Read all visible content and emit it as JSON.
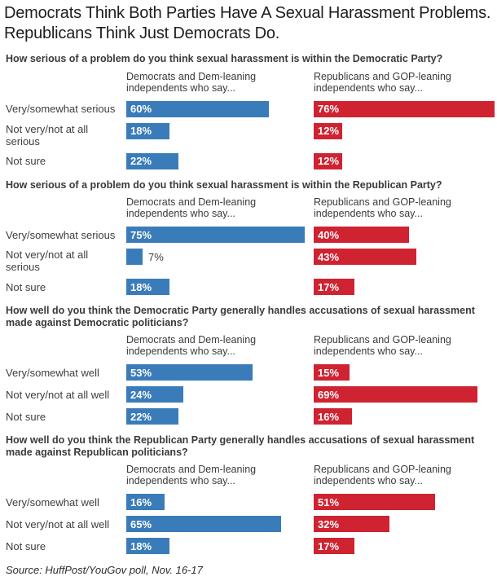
{
  "page": {
    "title": "Democrats Think Both Parties Have A Sexual Harassment Problems. Republicans Think Just Democrats Do.",
    "source": "Source: HuffPost/YouGov poll, Nov. 16-17"
  },
  "colors": {
    "dem": "#3a7cb9",
    "gop": "#cf2331",
    "bar_label_inside": "#ffffff",
    "bar_label_outside": "#3b3b3b"
  },
  "chart_data": [
    {
      "type": "bar",
      "orientation": "horizontal",
      "title": "How serious of a problem do you think sexual harassment is within the Democratic Party?",
      "categories": [
        "Very/somewhat serious",
        "Not very/not at all serious",
        "Not sure"
      ],
      "series": [
        {
          "name": "Democrats and Dem-leaning independents who say...",
          "party": "dem",
          "values": [
            60,
            18,
            22
          ]
        },
        {
          "name": "Republicans and GOP-leaning independents who say...",
          "party": "gop",
          "values": [
            76,
            12,
            12
          ]
        }
      ],
      "xlim": [
        0,
        77
      ],
      "value_suffix": "%",
      "value_labels": "inside",
      "grid": false,
      "legend_position": "column-headers"
    },
    {
      "type": "bar",
      "orientation": "horizontal",
      "title": "How serious of a problem do you think sexual harassment is within the Republican Party?",
      "categories": [
        "Very/somewhat serious",
        "Not very/not at all serious",
        "Not sure"
      ],
      "series": [
        {
          "name": "Democrats and Dem-leaning independents who say...",
          "party": "dem",
          "values": [
            75,
            7,
            18
          ]
        },
        {
          "name": "Republicans and GOP-leaning independents who say...",
          "party": "gop",
          "values": [
            40,
            43,
            17
          ]
        }
      ],
      "xlim": [
        0,
        77
      ],
      "value_suffix": "%",
      "value_labels": "inside",
      "grid": false,
      "legend_position": "column-headers"
    },
    {
      "type": "bar",
      "orientation": "horizontal",
      "title": "How well do you think the Democratic Party generally handles accusations of sexual harassment made against Democratic politicians?",
      "categories": [
        "Very/somewhat well",
        "Not very/not at all well",
        "Not sure"
      ],
      "series": [
        {
          "name": "Democrats and Dem-leaning independents who say...",
          "party": "dem",
          "values": [
            53,
            24,
            22
          ]
        },
        {
          "name": "Republicans and GOP-leaning independents who say...",
          "party": "gop",
          "values": [
            15,
            69,
            16
          ]
        }
      ],
      "xlim": [
        0,
        77
      ],
      "value_suffix": "%",
      "value_labels": "inside",
      "grid": false,
      "legend_position": "column-headers"
    },
    {
      "type": "bar",
      "orientation": "horizontal",
      "title": "How well do you think the Republican Party generally handles accusations of sexual harassment made against Republican politicians?",
      "categories": [
        "Very/somewhat well",
        "Not very/not at all well",
        "Not sure"
      ],
      "series": [
        {
          "name": "Democrats and Dem-leaning independents who say...",
          "party": "dem",
          "values": [
            16,
            65,
            18
          ]
        },
        {
          "name": "Republicans and GOP-leaning independents who say...",
          "party": "gop",
          "values": [
            51,
            32,
            17
          ]
        }
      ],
      "xlim": [
        0,
        77
      ],
      "value_suffix": "%",
      "value_labels": "inside",
      "grid": false,
      "legend_position": "column-headers"
    }
  ]
}
